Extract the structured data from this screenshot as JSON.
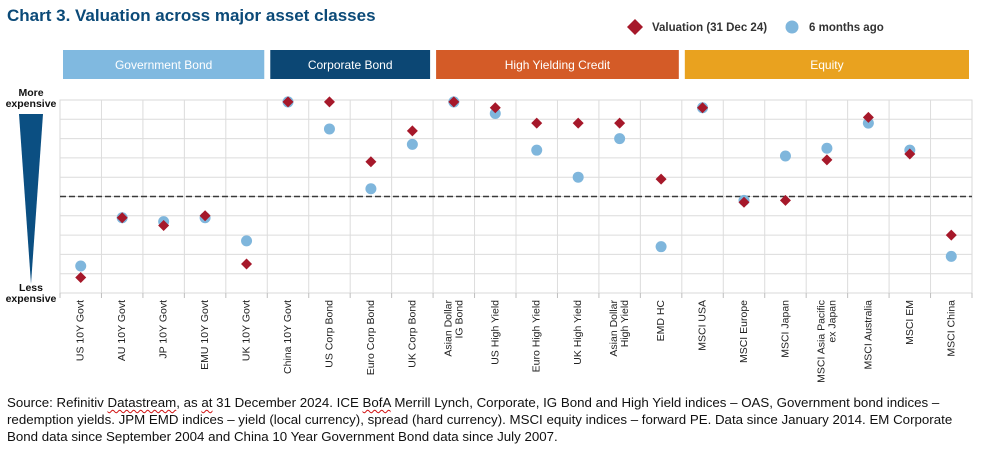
{
  "chart_data": {
    "type": "scatter",
    "title": "Chart 3. Valuation across major asset classes",
    "y_axis": {
      "top_label": "More expensive",
      "bottom_label": "Less expensive",
      "scale": "percentile",
      "range": [
        0,
        100
      ],
      "midline": 50,
      "grid": true
    },
    "legend": {
      "position": "top-right",
      "entries": [
        "Valuation (31 Dec 24)",
        "6 months ago"
      ]
    },
    "groups": [
      {
        "name": "Government Bond",
        "color": "#80b9e0",
        "categories": [
          "US 10Y Govt",
          "AU 10Y Govt",
          "JP 10Y Govt",
          "EMU 10Y Govt",
          "UK 10Y Govt"
        ]
      },
      {
        "name": "Corporate Bond",
        "color": "#0c4774",
        "categories": [
          "China 10Y Govt",
          "US Corp Bond",
          "Euro Corp Bond",
          "UK Corp Bond"
        ]
      },
      {
        "name": "High Yielding Credit",
        "color": "#d45b27",
        "categories": [
          "Asian Dollar IG Bond",
          "US High Yield",
          "Euro High Yield",
          "UK High Yield",
          "Asian Dollar High Yield",
          "EMD HC"
        ]
      },
      {
        "name": "Equity",
        "color": "#e9a21f",
        "categories": [
          "MSCI USA",
          "MSCI Europe",
          "MSCI Japan",
          "MSCI Asia Pacific ex Japan",
          "MSCI Australia",
          "MSCI EM",
          "MSCI China"
        ]
      }
    ],
    "categories": [
      "US 10Y Govt",
      "AU 10Y Govt",
      "JP 10Y Govt",
      "EMU 10Y Govt",
      "UK 10Y Govt",
      "China 10Y Govt",
      "US Corp Bond",
      "Euro Corp Bond",
      "UK Corp Bond",
      "Asian Dollar IG Bond",
      "US High Yield",
      "Euro High Yield",
      "UK High Yield",
      "Asian Dollar High Yield",
      "EMD HC",
      "MSCI USA",
      "MSCI Europe",
      "MSCI Japan",
      "MSCI Asia Pacific ex Japan",
      "MSCI Australia",
      "MSCI EM",
      "MSCI China"
    ],
    "series": [
      {
        "name": "Valuation (31 Dec 24)",
        "marker": "diamond",
        "color": "#a6182a",
        "values": [
          8,
          39,
          35,
          40,
          15,
          99,
          99,
          68,
          84,
          99,
          96,
          88,
          88,
          88,
          59,
          96,
          47,
          48,
          69,
          91,
          72,
          30
        ]
      },
      {
        "name": "6 months ago",
        "marker": "circle",
        "color": "#7fb6dc",
        "values": [
          14,
          39,
          37,
          39,
          27,
          99,
          85,
          54,
          77,
          99,
          93,
          74,
          60,
          80,
          24,
          96,
          48,
          71,
          75,
          88,
          74,
          19
        ]
      }
    ]
  },
  "footnote": {
    "p1": "Source: Refinitiv ",
    "s1": "Datastream",
    "p2": ", as ",
    "s2": "at",
    "p3": " 31 December 2024. ICE ",
    "s3": "BofA",
    "p4": " Merrill Lynch, Corporate, IG Bond and High Yield indices – OAS, Government bond indices – redemption yields. JPM EMD indices – yield (local currency), spread (hard currency). MSCI equity indices – forward PE. Data since January 2014. EM Corporate Bond data since September 2004 and China 10 Year Government Bond data since July 2007."
  }
}
